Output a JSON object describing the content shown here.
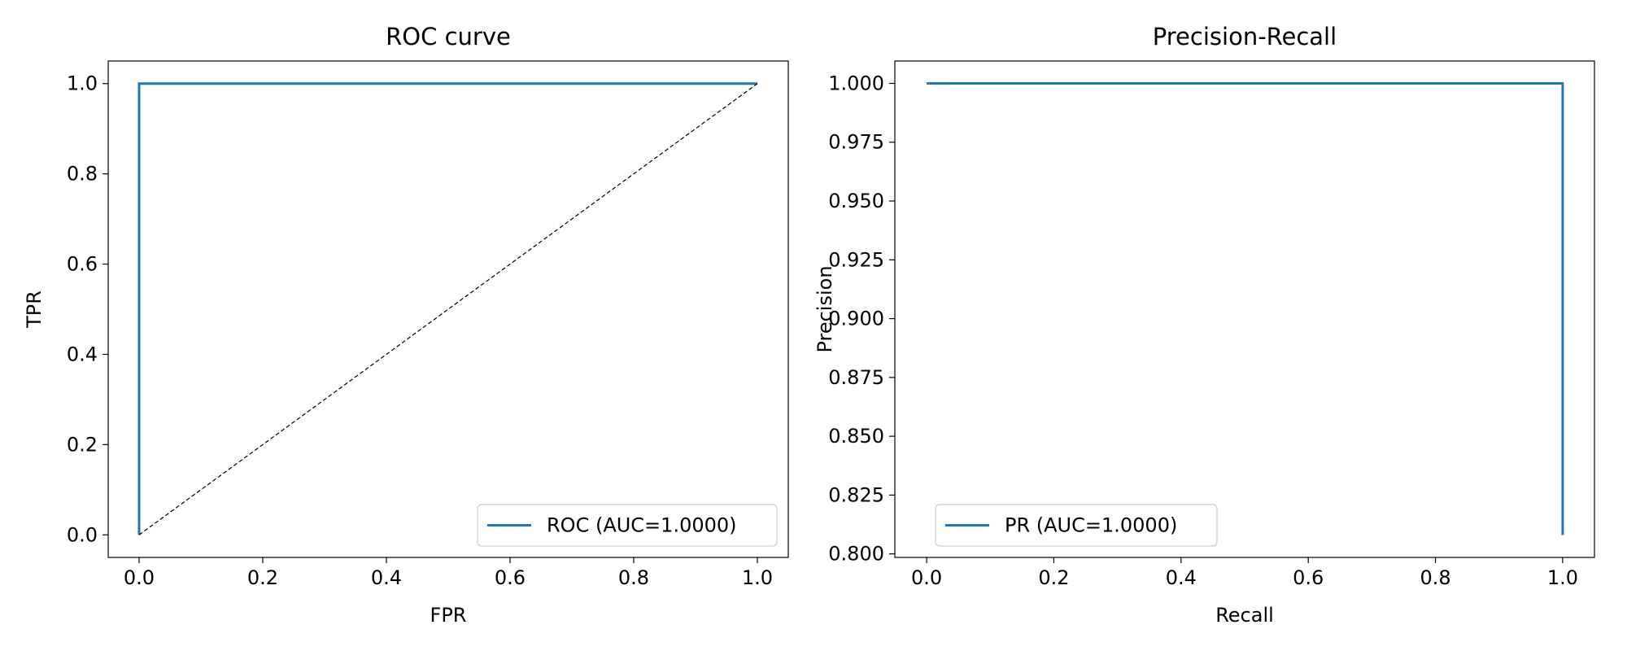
{
  "chart_data": [
    {
      "type": "line",
      "title": "ROC curve",
      "xlabel": "FPR",
      "ylabel": "TPR",
      "xlim": [
        -0.05,
        1.05
      ],
      "ylim": [
        -0.05,
        1.05
      ],
      "xticks": [
        0.0,
        0.2,
        0.4,
        0.6,
        0.8,
        1.0
      ],
      "xtick_labels": [
        "0.0",
        "0.2",
        "0.4",
        "0.6",
        "0.8",
        "1.0"
      ],
      "yticks": [
        0.0,
        0.2,
        0.4,
        0.6,
        0.8,
        1.0
      ],
      "ytick_labels": [
        "0.0",
        "0.2",
        "0.4",
        "0.6",
        "0.8",
        "1.0"
      ],
      "grid": false,
      "legend_position": "lower-right",
      "series": [
        {
          "name": "ROC (AUC=1.0000)",
          "color": "#1f77b4",
          "style": "solid",
          "x": [
            0.0,
            0.0,
            1.0
          ],
          "y": [
            0.0,
            1.0,
            1.0
          ],
          "in_legend": true
        },
        {
          "color": "#000000",
          "style": "dashed",
          "x": [
            0.0,
            1.0
          ],
          "y": [
            0.0,
            1.0
          ],
          "in_legend": false
        }
      ]
    },
    {
      "type": "line",
      "title": "Precision-Recall",
      "xlabel": "Recall",
      "ylabel": "Precision",
      "xlim": [
        -0.05,
        1.05
      ],
      "ylim": [
        0.7985,
        1.0095
      ],
      "xticks": [
        0.0,
        0.2,
        0.4,
        0.6,
        0.8,
        1.0
      ],
      "xtick_labels": [
        "0.0",
        "0.2",
        "0.4",
        "0.6",
        "0.8",
        "1.0"
      ],
      "yticks": [
        0.8,
        0.825,
        0.85,
        0.875,
        0.9,
        0.925,
        0.95,
        0.975,
        1.0
      ],
      "ytick_labels": [
        "0.800",
        "0.825",
        "0.850",
        "0.875",
        "0.900",
        "0.925",
        "0.950",
        "0.975",
        "1.000"
      ],
      "grid": false,
      "legend_position": "lower-left",
      "series": [
        {
          "name": "PR (AUC=1.0000)",
          "color": "#1f77b4",
          "style": "solid",
          "x": [
            0.0,
            1.0,
            1.0
          ],
          "y": [
            1.0,
            1.0,
            0.808
          ],
          "in_legend": true
        }
      ]
    }
  ]
}
